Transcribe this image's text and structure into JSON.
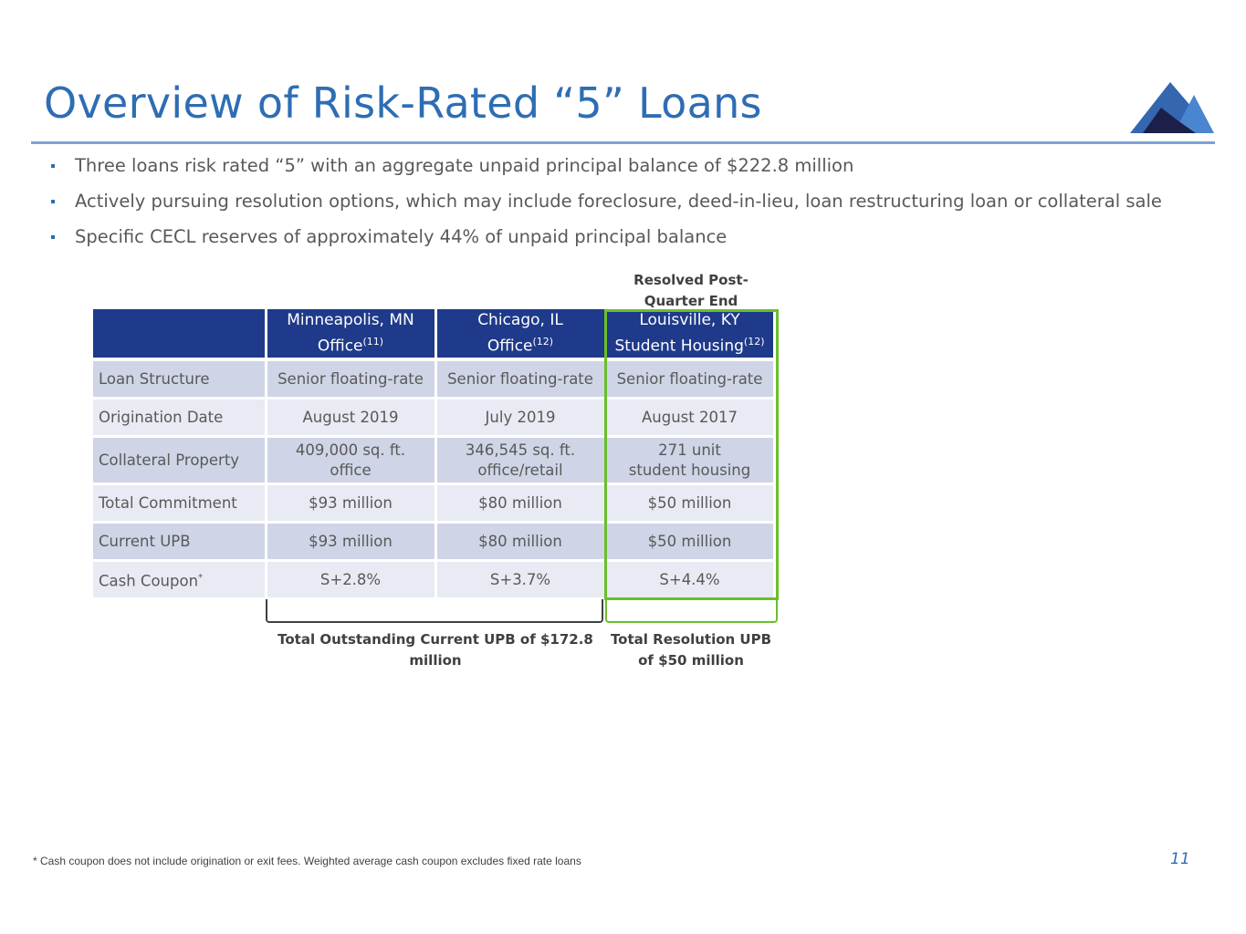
{
  "title": "Overview of Risk-Rated “5” Loans",
  "bullets": [
    "Three loans risk rated “5” with an aggregate unpaid principal balance of $222.8 million",
    "Actively pursuing resolution options, which may include foreclosure, deed-in-lieu, loan restructuring loan or collateral sale",
    "Specific CECL reserves of approximately 44% of unpaid principal balance"
  ],
  "resolved_label": "Resolved Post-Quarter End",
  "table": {
    "columns": [
      {
        "line1": "Minneapolis, MN",
        "line2": "Office",
        "note": "(11)"
      },
      {
        "line1": "Chicago, IL",
        "line2": "Office",
        "note": "(12)"
      },
      {
        "line1": "Louisville, KY",
        "line2": "Student Housing",
        "note": "(12)"
      }
    ],
    "rows": [
      {
        "label": "Loan Structure",
        "values": [
          "Senior floating-rate",
          "Senior floating-rate",
          "Senior floating-rate"
        ]
      },
      {
        "label": "Origination Date",
        "values": [
          "August 2019",
          "July 2019",
          "August 2017"
        ]
      },
      {
        "label": "Collateral Property",
        "values": [
          [
            "409,000 sq. ft.",
            "office"
          ],
          [
            "346,545 sq. ft.",
            "office/retail"
          ],
          [
            "271 unit",
            "student housing"
          ]
        ]
      },
      {
        "label": "Total Commitment",
        "values": [
          "$93 million",
          "$80 million",
          "$50 million"
        ]
      },
      {
        "label": "Current UPB",
        "values": [
          "$93 million",
          "$80 million",
          "$50 million"
        ]
      },
      {
        "label": "Cash Coupon",
        "label_note": "*",
        "values": [
          "S+2.8%",
          "S+3.7%",
          "S+4.4%"
        ]
      }
    ]
  },
  "summary_outstanding": "Total Outstanding Current UPB of $172.8 million",
  "summary_resolution": "Total Resolution UPB of $50 million",
  "footnote": "* Cash coupon does not include origination or exit fees. Weighted average cash coupon excludes fixed rate loans",
  "page_number": "11",
  "colors": {
    "title_blue": "#2e6db4",
    "header_navy": "#1f3a8a",
    "highlight_green": "#6abf2a"
  },
  "logo_icon": "mountain-logo-icon"
}
